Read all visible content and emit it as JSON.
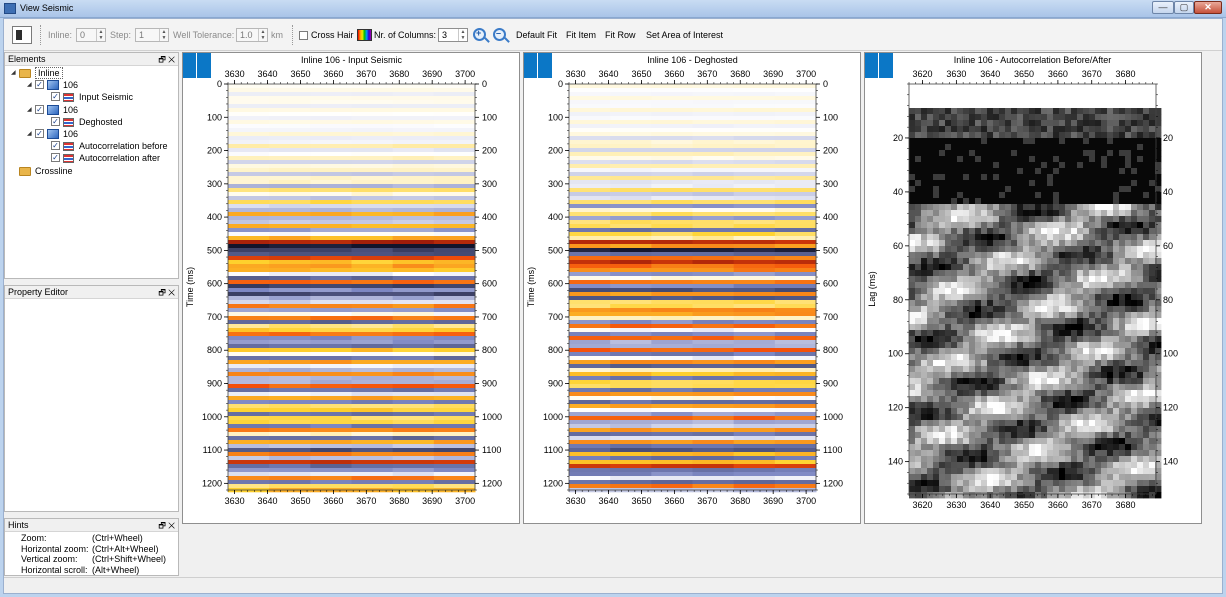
{
  "window": {
    "title": "View Seismic"
  },
  "toolbar": {
    "inline_label": "Inline:",
    "inline_value": "0",
    "step_label": "Step:",
    "step_value": "1",
    "well_tol_label": "Well Tolerance:",
    "well_tol_value": "1.0",
    "well_tol_unit": "km",
    "cross_hair_label": "Cross Hair",
    "columns_label": "Nr. of Columns:",
    "columns_value": "3",
    "default_fit": "Default Fit",
    "fit_item": "Fit Item",
    "fit_row": "Fit Row",
    "set_aoi": "Set Area of Interest"
  },
  "elements_panel": {
    "title": "Elements",
    "tree": [
      {
        "label": "Inline",
        "icon": "folder-icon",
        "level": 0,
        "expanded": true
      },
      {
        "label": "106",
        "icon": "cube-icon",
        "level": 1,
        "checked": true,
        "expanded": true
      },
      {
        "label": "Input Seismic",
        "icon": "seismic-icon",
        "level": 2,
        "checked": true
      },
      {
        "label": "106",
        "icon": "cube-icon",
        "level": 1,
        "checked": true,
        "expanded": true
      },
      {
        "label": "Deghosted",
        "icon": "seismic-icon",
        "level": 2,
        "checked": true
      },
      {
        "label": "106",
        "icon": "cube-icon",
        "level": 1,
        "checked": true,
        "expanded": true
      },
      {
        "label": "Autocorrelation before",
        "icon": "seismic-icon",
        "level": 2,
        "checked": true
      },
      {
        "label": "Autocorrelation after",
        "icon": "seismic-icon",
        "level": 2,
        "checked": true
      },
      {
        "label": "Crossline",
        "icon": "folder-icon",
        "level": 0
      }
    ]
  },
  "property_panel": {
    "title": "Property Editor"
  },
  "hints_panel": {
    "title": "Hints",
    "rows": [
      {
        "key": "Zoom:",
        "value": "(Ctrl+Wheel)"
      },
      {
        "key": "Horizontal zoom:",
        "value": "(Ctrl+Alt+Wheel)"
      },
      {
        "key": "Vertical zoom:",
        "value": "(Ctrl+Shift+Wheel)"
      },
      {
        "key": "Horizontal scroll:",
        "value": "(Alt+Wheel)"
      }
    ]
  },
  "panel_controls": {
    "pin": "🗗",
    "close": "✕"
  },
  "chart_data": [
    {
      "type": "heatmap",
      "title": "Inline 106 - Input Seismic",
      "ylabel": "Time (ms)",
      "x_ticks": [
        3630,
        3640,
        3650,
        3660,
        3670,
        3680,
        3690,
        3700
      ],
      "xlim": [
        3628,
        3703
      ],
      "y_ticks": [
        0,
        100,
        200,
        300,
        400,
        500,
        600,
        700,
        800,
        900,
        1000,
        1100,
        1200
      ],
      "ylim": [
        0,
        1220
      ],
      "colormap": "seismic red-yellow-white-blue-black"
    },
    {
      "type": "heatmap",
      "title": "Inline 106 - Deghosted",
      "ylabel": "Time (ms)",
      "x_ticks": [
        3630,
        3640,
        3650,
        3660,
        3670,
        3680,
        3690,
        3700
      ],
      "xlim": [
        3628,
        3703
      ],
      "y_ticks": [
        0,
        100,
        200,
        300,
        400,
        500,
        600,
        700,
        800,
        900,
        1000,
        1100,
        1200
      ],
      "ylim": [
        0,
        1220
      ],
      "colormap": "seismic red-yellow-white-blue-black"
    },
    {
      "type": "heatmap",
      "title": "Inline 106 - Autocorrelation Before/After",
      "ylabel": "Lag (ms)",
      "x_ticks": [
        3620,
        3630,
        3640,
        3650,
        3660,
        3670,
        3680
      ],
      "xlim": [
        3616,
        3689
      ],
      "y_ticks": [
        20,
        40,
        60,
        80,
        100,
        120,
        140
      ],
      "ylim": [
        0,
        152
      ],
      "colormap": "grayscale"
    }
  ]
}
